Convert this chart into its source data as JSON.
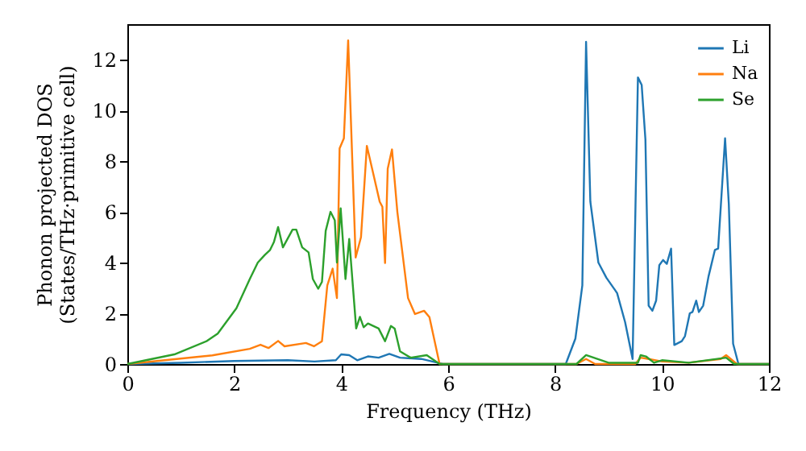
{
  "chart_data": {
    "type": "line",
    "xlabel": "Frequency (THz)",
    "ylabel": "Phonon projected DOS\n(States/THz·primitive cell)",
    "xlim": [
      0,
      12
    ],
    "ylim": [
      0,
      13.4
    ],
    "xticks": [
      0,
      2,
      4,
      6,
      8,
      10,
      12
    ],
    "yticks": [
      0,
      2,
      4,
      6,
      8,
      10,
      12
    ],
    "legend": "top right",
    "grid": false,
    "line_style": "solid",
    "marker": "none",
    "series": [
      {
        "name": "Li",
        "color": "#1f77b4",
        "x": [
          0,
          1,
          2,
          3,
          3.5,
          3.9,
          4.0,
          4.15,
          4.3,
          4.5,
          4.7,
          4.9,
          5.1,
          5.5,
          5.8,
          5.9,
          8.2,
          8.38,
          8.51,
          8.58,
          8.66,
          8.81,
          8.96,
          9.16,
          9.31,
          9.45,
          9.55,
          9.62,
          9.69,
          9.75,
          9.82,
          9.89,
          9.95,
          10.02,
          10.09,
          10.17,
          10.23,
          10.37,
          10.43,
          10.52,
          10.57,
          10.64,
          10.69,
          10.77,
          10.87,
          10.99,
          11.05,
          11.18,
          11.25,
          11.33,
          11.43,
          12
        ],
        "values": [
          0,
          0.05,
          0.12,
          0.15,
          0.1,
          0.15,
          0.38,
          0.35,
          0.15,
          0.3,
          0.25,
          0.4,
          0.25,
          0.2,
          0.05,
          0,
          0,
          1.0,
          3.1,
          12.7,
          6.4,
          4.0,
          3.4,
          2.8,
          1.65,
          0.2,
          11.3,
          11.0,
          8.85,
          2.3,
          2.1,
          2.5,
          3.9,
          4.1,
          3.95,
          4.55,
          0.75,
          0.9,
          1.1,
          2.0,
          2.05,
          2.5,
          2.05,
          2.3,
          3.45,
          4.5,
          4.55,
          8.9,
          6.3,
          0.8,
          0,
          0
        ]
      },
      {
        "name": "Na",
        "color": "#ff7f0e",
        "x": [
          0,
          1.59,
          2.29,
          2.49,
          2.64,
          2.82,
          2.94,
          3.34,
          3.49,
          3.64,
          3.74,
          3.84,
          3.92,
          3.97,
          4.05,
          4.13,
          4.27,
          4.37,
          4.48,
          4.6,
          4.72,
          4.77,
          4.82,
          4.87,
          4.95,
          5.05,
          5.25,
          5.38,
          5.55,
          5.65,
          5.84,
          8.4,
          8.58,
          8.75,
          9.5,
          9.6,
          9.75,
          10.0,
          10.5,
          11.1,
          11.2,
          11.4,
          12
        ],
        "values": [
          0,
          0.34,
          0.6,
          0.76,
          0.63,
          0.91,
          0.7,
          0.83,
          0.7,
          0.9,
          3.1,
          3.76,
          2.6,
          8.5,
          8.9,
          12.76,
          4.2,
          5.0,
          8.6,
          7.5,
          6.4,
          6.2,
          3.98,
          7.7,
          8.46,
          6.0,
          2.6,
          1.97,
          2.1,
          1.85,
          0,
          0,
          0.2,
          0,
          0,
          0.25,
          0.2,
          0.1,
          0.05,
          0.2,
          0.35,
          0,
          0
        ]
      },
      {
        "name": "Se",
        "color": "#2ca02c",
        "x": [
          0,
          0.88,
          1.49,
          1.69,
          2.04,
          2.29,
          2.44,
          2.57,
          2.67,
          2.74,
          2.82,
          2.91,
          3.09,
          3.16,
          3.27,
          3.39,
          3.47,
          3.57,
          3.64,
          3.71,
          3.8,
          3.88,
          3.92,
          3.99,
          4.08,
          4.15,
          4.28,
          4.35,
          4.42,
          4.5,
          4.7,
          4.82,
          4.93,
          5.0,
          5.1,
          5.3,
          5.6,
          5.84,
          8.4,
          8.58,
          9.0,
          9.55,
          9.6,
          9.7,
          9.85,
          10.0,
          10.5,
          11.2,
          11.35,
          12
        ],
        "values": [
          0,
          0.38,
          0.91,
          1.2,
          2.2,
          3.35,
          4.0,
          4.3,
          4.5,
          4.8,
          5.4,
          4.6,
          5.3,
          5.3,
          4.6,
          4.4,
          3.35,
          2.97,
          3.24,
          5.25,
          6.0,
          5.67,
          4.0,
          6.14,
          3.35,
          4.93,
          1.4,
          1.86,
          1.45,
          1.6,
          1.4,
          0.9,
          1.5,
          1.4,
          0.5,
          0.25,
          0.35,
          0,
          0,
          0.35,
          0.05,
          0.05,
          0.35,
          0.3,
          0.05,
          0.15,
          0.05,
          0.25,
          0,
          0
        ]
      }
    ]
  }
}
